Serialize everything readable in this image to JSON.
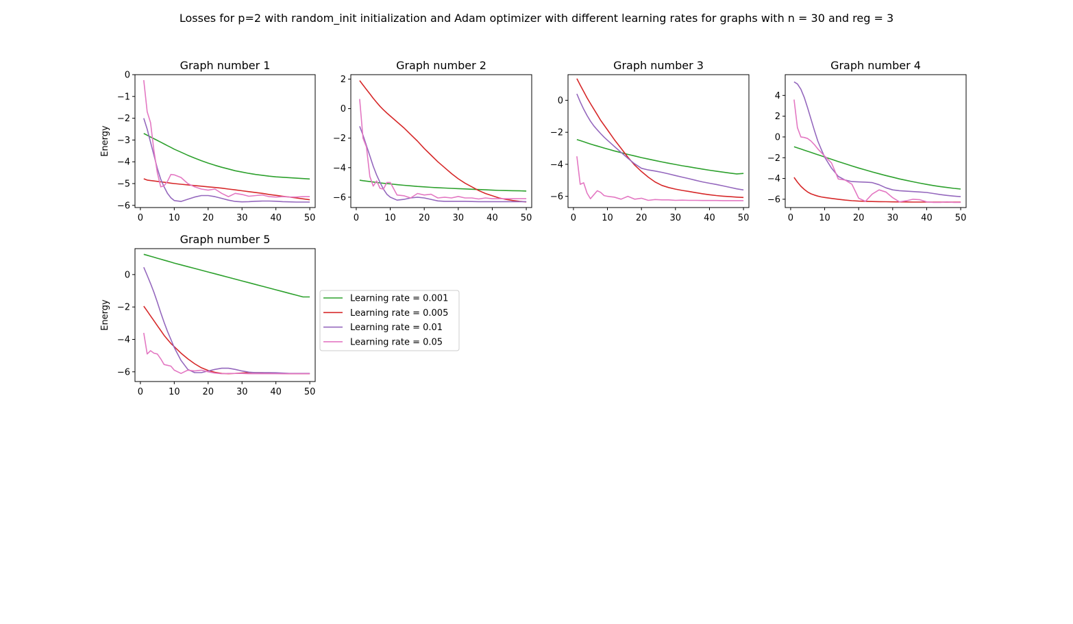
{
  "figure": {
    "title": "Losses for p=2 with random_init initialization and Adam optimizer with different learning rates for graphs with n = 30 and reg = 3"
  },
  "legend": {
    "placement": "right-of-graph-5",
    "entries": [
      {
        "label": "Learning rate = 0.001",
        "color": "#2ca02c"
      },
      {
        "label": "Learning rate = 0.005",
        "color": "#d62728"
      },
      {
        "label": "Learning rate = 0.01",
        "color": "#9467bd"
      },
      {
        "label": "Learning rate = 0.05",
        "color": "#e377c2"
      }
    ]
  },
  "chart_data": [
    {
      "type": "line",
      "title": "Graph number 1",
      "ylabel": "Energy",
      "xlabel": "",
      "xlim": [
        0,
        50
      ],
      "ylim": [
        -6.1,
        0
      ],
      "xticks": [
        0,
        10,
        20,
        30,
        40,
        50
      ],
      "yticks": [
        0,
        -1,
        -2,
        -3,
        -4,
        -5,
        -6
      ],
      "grid": false,
      "x": [
        1,
        2,
        3,
        4,
        5,
        6,
        7,
        8,
        9,
        10,
        12,
        14,
        16,
        18,
        20,
        22,
        24,
        26,
        28,
        30,
        32,
        34,
        36,
        38,
        40,
        42,
        44,
        46,
        48,
        50
      ],
      "series": [
        {
          "name": "Learning rate = 0.001",
          "color": "#2ca02c",
          "values": [
            -2.7,
            -2.78,
            -2.86,
            -2.94,
            -3.02,
            -3.1,
            -3.18,
            -3.26,
            -3.34,
            -3.42,
            -3.56,
            -3.7,
            -3.83,
            -3.95,
            -4.06,
            -4.16,
            -4.25,
            -4.33,
            -4.41,
            -4.47,
            -4.53,
            -4.58,
            -4.62,
            -4.66,
            -4.69,
            -4.71,
            -4.73,
            -4.75,
            -4.77,
            -4.79
          ]
        },
        {
          "name": "Learning rate = 0.005",
          "color": "#d62728",
          "values": [
            -4.78,
            -4.84,
            -4.86,
            -4.88,
            -4.9,
            -4.92,
            -4.94,
            -4.96,
            -4.98,
            -5.0,
            -5.03,
            -5.06,
            -5.09,
            -5.12,
            -5.15,
            -5.18,
            -5.21,
            -5.25,
            -5.29,
            -5.33,
            -5.37,
            -5.41,
            -5.45,
            -5.5,
            -5.54,
            -5.58,
            -5.62,
            -5.66,
            -5.7,
            -5.74
          ]
        },
        {
          "name": "Learning rate = 0.01",
          "color": "#9467bd",
          "values": [
            -2.0,
            -2.5,
            -3.1,
            -3.7,
            -4.3,
            -4.8,
            -5.15,
            -5.45,
            -5.65,
            -5.78,
            -5.82,
            -5.72,
            -5.62,
            -5.55,
            -5.55,
            -5.6,
            -5.68,
            -5.76,
            -5.82,
            -5.84,
            -5.83,
            -5.81,
            -5.8,
            -5.8,
            -5.81,
            -5.83,
            -5.84,
            -5.85,
            -5.85,
            -5.85
          ]
        },
        {
          "name": "Learning rate = 0.05",
          "color": "#e377c2",
          "values": [
            -0.25,
            -1.7,
            -2.2,
            -3.5,
            -4.5,
            -5.15,
            -5.1,
            -4.9,
            -4.58,
            -4.6,
            -4.72,
            -5.0,
            -5.15,
            -5.25,
            -5.3,
            -5.25,
            -5.45,
            -5.6,
            -5.45,
            -5.5,
            -5.58,
            -5.55,
            -5.52,
            -5.6,
            -5.62,
            -5.6,
            -5.62,
            -5.62,
            -5.6,
            -5.6
          ]
        }
      ]
    },
    {
      "type": "line",
      "title": "Graph number 2",
      "ylabel": "",
      "xlabel": "",
      "xlim": [
        0,
        50
      ],
      "ylim": [
        -6.7,
        2.3
      ],
      "xticks": [
        0,
        10,
        20,
        30,
        40,
        50
      ],
      "yticks": [
        2,
        0,
        -2,
        -4,
        -6
      ],
      "grid": false,
      "x": [
        1,
        2,
        3,
        4,
        5,
        6,
        7,
        8,
        9,
        10,
        12,
        14,
        16,
        18,
        20,
        22,
        24,
        26,
        28,
        30,
        32,
        34,
        36,
        38,
        40,
        42,
        44,
        46,
        48,
        50
      ],
      "series": [
        {
          "name": "Learning rate = 0.001",
          "color": "#2ca02c",
          "values": [
            -4.85,
            -4.88,
            -4.91,
            -4.94,
            -4.97,
            -5.0,
            -5.03,
            -5.06,
            -5.08,
            -5.1,
            -5.15,
            -5.19,
            -5.23,
            -5.27,
            -5.3,
            -5.33,
            -5.36,
            -5.38,
            -5.4,
            -5.42,
            -5.44,
            -5.46,
            -5.48,
            -5.5,
            -5.52,
            -5.54,
            -5.55,
            -5.56,
            -5.57,
            -5.58
          ]
        },
        {
          "name": "Learning rate = 0.005",
          "color": "#d62728",
          "values": [
            1.9,
            1.6,
            1.3,
            1.0,
            0.7,
            0.42,
            0.15,
            -0.08,
            -0.3,
            -0.5,
            -0.9,
            -1.3,
            -1.75,
            -2.2,
            -2.7,
            -3.15,
            -3.6,
            -4.0,
            -4.4,
            -4.75,
            -5.05,
            -5.3,
            -5.55,
            -5.75,
            -5.9,
            -6.05,
            -6.15,
            -6.22,
            -6.28,
            -6.32
          ]
        },
        {
          "name": "Learning rate = 0.01",
          "color": "#9467bd",
          "values": [
            -1.2,
            -1.8,
            -2.5,
            -3.2,
            -3.9,
            -4.5,
            -5.0,
            -5.45,
            -5.8,
            -6.0,
            -6.2,
            -6.15,
            -6.05,
            -6.0,
            -6.05,
            -6.15,
            -6.25,
            -6.28,
            -6.28,
            -6.28,
            -6.28,
            -6.29,
            -6.3,
            -6.3,
            -6.3,
            -6.3,
            -6.3,
            -6.3,
            -6.3,
            -6.3
          ]
        },
        {
          "name": "Learning rate = 0.05",
          "color": "#e377c2",
          "values": [
            0.65,
            -2.0,
            -2.6,
            -4.6,
            -5.25,
            -4.9,
            -5.4,
            -5.45,
            -5.0,
            -5.0,
            -5.85,
            -5.9,
            -6.05,
            -5.75,
            -5.85,
            -5.8,
            -6.05,
            -6.0,
            -6.05,
            -5.95,
            -6.05,
            -6.05,
            -6.12,
            -6.05,
            -6.1,
            -6.1,
            -6.1,
            -6.1,
            -6.1,
            -6.1
          ]
        }
      ]
    },
    {
      "type": "line",
      "title": "Graph number 3",
      "ylabel": "",
      "xlabel": "",
      "xlim": [
        0,
        50
      ],
      "ylim": [
        -6.7,
        1.6
      ],
      "xticks": [
        0,
        10,
        20,
        30,
        40,
        50
      ],
      "yticks": [
        0,
        -2,
        -4,
        -6
      ],
      "grid": false,
      "x": [
        1,
        2,
        3,
        4,
        5,
        6,
        7,
        8,
        9,
        10,
        12,
        14,
        16,
        18,
        20,
        22,
        24,
        26,
        28,
        30,
        32,
        34,
        36,
        38,
        40,
        42,
        44,
        46,
        48,
        50
      ],
      "series": [
        {
          "name": "Learning rate = 0.001",
          "color": "#2ca02c",
          "values": [
            -2.45,
            -2.52,
            -2.59,
            -2.66,
            -2.73,
            -2.8,
            -2.86,
            -2.92,
            -2.98,
            -3.04,
            -3.16,
            -3.27,
            -3.38,
            -3.48,
            -3.58,
            -3.67,
            -3.76,
            -3.85,
            -3.93,
            -4.01,
            -4.09,
            -4.16,
            -4.23,
            -4.3,
            -4.37,
            -4.43,
            -4.49,
            -4.55,
            -4.6,
            -4.57
          ]
        },
        {
          "name": "Learning rate = 0.005",
          "color": "#d62728",
          "values": [
            1.35,
            0.95,
            0.55,
            0.15,
            -0.2,
            -0.55,
            -0.9,
            -1.25,
            -1.55,
            -1.85,
            -2.45,
            -3.0,
            -3.55,
            -4.05,
            -4.45,
            -4.8,
            -5.1,
            -5.32,
            -5.45,
            -5.55,
            -5.63,
            -5.7,
            -5.77,
            -5.84,
            -5.9,
            -5.95,
            -5.99,
            -6.02,
            -6.05,
            -6.07
          ]
        },
        {
          "name": "Learning rate = 0.01",
          "color": "#9467bd",
          "values": [
            0.4,
            -0.1,
            -0.55,
            -0.95,
            -1.3,
            -1.6,
            -1.85,
            -2.08,
            -2.3,
            -2.5,
            -2.88,
            -3.25,
            -3.62,
            -3.97,
            -4.25,
            -4.35,
            -4.42,
            -4.5,
            -4.6,
            -4.7,
            -4.8,
            -4.9,
            -5.0,
            -5.1,
            -5.18,
            -5.26,
            -5.35,
            -5.44,
            -5.53,
            -5.6
          ]
        },
        {
          "name": "Learning rate = 0.05",
          "color": "#e377c2",
          "values": [
            -3.5,
            -5.25,
            -5.15,
            -5.8,
            -6.15,
            -5.9,
            -5.65,
            -5.75,
            -5.95,
            -6.0,
            -6.05,
            -6.18,
            -6.0,
            -6.18,
            -6.12,
            -6.25,
            -6.2,
            -6.22,
            -6.22,
            -6.25,
            -6.24,
            -6.25,
            -6.25,
            -6.26,
            -6.26,
            -6.26,
            -6.27,
            -6.27,
            -6.27,
            -6.27
          ]
        }
      ]
    },
    {
      "type": "line",
      "title": "Graph number 4",
      "ylabel": "",
      "xlabel": "",
      "xlim": [
        0,
        50
      ],
      "ylim": [
        -6.8,
        6.0
      ],
      "xticks": [
        0,
        10,
        20,
        30,
        40,
        50
      ],
      "yticks": [
        4,
        2,
        0,
        -2,
        -4,
        -6
      ],
      "grid": false,
      "x": [
        1,
        2,
        3,
        4,
        5,
        6,
        7,
        8,
        9,
        10,
        12,
        14,
        16,
        18,
        20,
        22,
        24,
        26,
        28,
        30,
        32,
        34,
        36,
        38,
        40,
        42,
        44,
        46,
        48,
        50
      ],
      "series": [
        {
          "name": "Learning rate = 0.001",
          "color": "#2ca02c",
          "values": [
            -0.95,
            -1.05,
            -1.16,
            -1.27,
            -1.38,
            -1.49,
            -1.6,
            -1.71,
            -1.82,
            -1.93,
            -2.15,
            -2.37,
            -2.58,
            -2.79,
            -2.99,
            -3.18,
            -3.37,
            -3.55,
            -3.72,
            -3.88,
            -4.04,
            -4.18,
            -4.32,
            -4.45,
            -4.57,
            -4.68,
            -4.78,
            -4.87,
            -4.95,
            -5.02
          ]
        },
        {
          "name": "Learning rate = 0.005",
          "color": "#d62728",
          "values": [
            -3.9,
            -4.35,
            -4.75,
            -5.05,
            -5.3,
            -5.48,
            -5.6,
            -5.7,
            -5.78,
            -5.83,
            -5.92,
            -6.0,
            -6.08,
            -6.14,
            -6.18,
            -6.2,
            -6.22,
            -6.23,
            -6.24,
            -6.25,
            -6.26,
            -6.26,
            -6.27,
            -6.27,
            -6.27,
            -6.27,
            -6.28,
            -6.28,
            -6.28,
            -6.28
          ]
        },
        {
          "name": "Learning rate = 0.01",
          "color": "#9467bd",
          "values": [
            5.3,
            5.1,
            4.6,
            3.8,
            2.8,
            1.7,
            0.6,
            -0.4,
            -1.2,
            -1.95,
            -3.0,
            -3.8,
            -4.15,
            -4.3,
            -4.33,
            -4.35,
            -4.4,
            -4.6,
            -4.9,
            -5.1,
            -5.18,
            -5.22,
            -5.26,
            -5.3,
            -5.35,
            -5.45,
            -5.55,
            -5.63,
            -5.7,
            -5.75
          ]
        },
        {
          "name": "Learning rate = 0.05",
          "color": "#e377c2",
          "values": [
            3.6,
            0.9,
            0.0,
            -0.05,
            -0.15,
            -0.4,
            -0.75,
            -1.15,
            -1.5,
            -1.85,
            -2.5,
            -4.05,
            -4.15,
            -4.55,
            -5.9,
            -6.2,
            -5.5,
            -5.1,
            -5.3,
            -5.85,
            -6.25,
            -6.15,
            -6.0,
            -6.05,
            -6.25,
            -6.3,
            -6.3,
            -6.25,
            -6.3,
            -6.3
          ]
        }
      ]
    },
    {
      "type": "line",
      "title": "Graph number 5",
      "ylabel": "Energy",
      "xlabel": "",
      "xlim": [
        0,
        50
      ],
      "ylim": [
        -6.6,
        1.6
      ],
      "xticks": [
        0,
        10,
        20,
        30,
        40,
        50
      ],
      "yticks": [
        0,
        -2,
        -4,
        -6
      ],
      "grid": false,
      "x": [
        1,
        2,
        3,
        4,
        5,
        6,
        7,
        8,
        9,
        10,
        12,
        14,
        16,
        18,
        20,
        22,
        24,
        26,
        28,
        30,
        32,
        34,
        36,
        38,
        40,
        42,
        44,
        46,
        48,
        50
      ],
      "series": [
        {
          "name": "Learning rate = 0.001",
          "color": "#2ca02c",
          "values": [
            1.25,
            1.19,
            1.13,
            1.07,
            1.01,
            0.95,
            0.89,
            0.83,
            0.77,
            0.71,
            0.6,
            0.49,
            0.38,
            0.27,
            0.16,
            0.05,
            -0.06,
            -0.17,
            -0.28,
            -0.39,
            -0.5,
            -0.61,
            -0.72,
            -0.83,
            -0.94,
            -1.05,
            -1.16,
            -1.27,
            -1.38,
            -1.38
          ]
        },
        {
          "name": "Learning rate = 0.005",
          "color": "#d62728",
          "values": [
            -1.95,
            -2.25,
            -2.55,
            -2.85,
            -3.15,
            -3.45,
            -3.75,
            -4.0,
            -4.25,
            -4.45,
            -4.85,
            -5.2,
            -5.5,
            -5.75,
            -5.92,
            -6.03,
            -6.1,
            -6.12,
            -6.1,
            -6.07,
            -6.05,
            -6.05,
            -6.06,
            -6.08,
            -6.1,
            -6.11,
            -6.12,
            -6.12,
            -6.12,
            -6.12
          ]
        },
        {
          "name": "Learning rate = 0.01",
          "color": "#9467bd",
          "values": [
            0.45,
            -0.05,
            -0.55,
            -1.1,
            -1.7,
            -2.35,
            -2.95,
            -3.5,
            -4.0,
            -4.5,
            -5.3,
            -5.85,
            -6.05,
            -6.05,
            -5.95,
            -5.85,
            -5.78,
            -5.78,
            -5.85,
            -5.95,
            -6.02,
            -6.05,
            -6.05,
            -6.05,
            -6.06,
            -6.08,
            -6.1,
            -6.1,
            -6.1,
            -6.1
          ]
        },
        {
          "name": "Learning rate = 0.05",
          "color": "#e377c2",
          "values": [
            -3.6,
            -4.9,
            -4.7,
            -4.85,
            -4.9,
            -5.2,
            -5.55,
            -5.6,
            -5.65,
            -5.9,
            -6.1,
            -5.9,
            -5.95,
            -5.9,
            -6.0,
            -6.08,
            -6.12,
            -6.1,
            -6.1,
            -6.1,
            -6.12,
            -6.12,
            -6.12,
            -6.12,
            -6.12,
            -6.12,
            -6.12,
            -6.12,
            -6.12,
            -6.12
          ]
        }
      ]
    }
  ]
}
